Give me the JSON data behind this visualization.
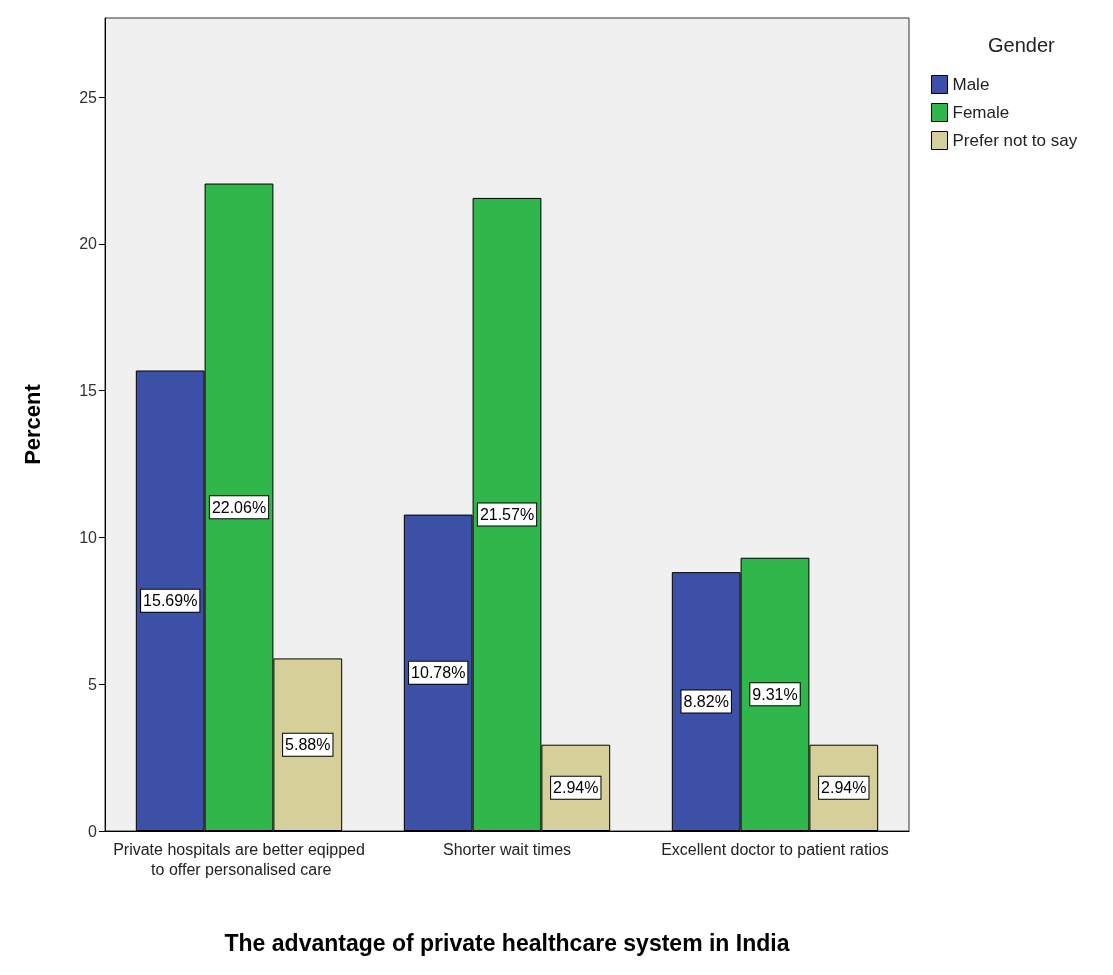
{
  "chart_data": {
    "type": "bar",
    "xlabel": "The advantage of private healthcare system in India",
    "ylabel": "Percent",
    "legend_title": "Gender",
    "categories": [
      "Private hospitals are better eqipped to offer personalised care",
      "Shorter wait times",
      "Excellent doctor to patient ratios"
    ],
    "series": [
      {
        "name": "Male",
        "color": "#3b50a6",
        "values": [
          15.69,
          10.78,
          8.82
        ],
        "value_labels": [
          "15.69%",
          "10.78%",
          "8.82%"
        ]
      },
      {
        "name": "Female",
        "color": "#2fb74b",
        "values": [
          22.06,
          21.57,
          9.31
        ],
        "value_labels": [
          "22.06%",
          "21.57%",
          "9.31%"
        ]
      },
      {
        "name": "Prefer not to say",
        "color": "#d5d09a",
        "values": [
          5.88,
          2.94,
          2.94
        ],
        "value_labels": [
          "5.88%",
          "2.94%",
          "2.94%"
        ]
      }
    ],
    "ylim": [
      0,
      27.7
    ],
    "yticks": [
      0,
      5,
      10,
      15,
      20,
      25
    ],
    "grid": false,
    "legend": "top right"
  }
}
